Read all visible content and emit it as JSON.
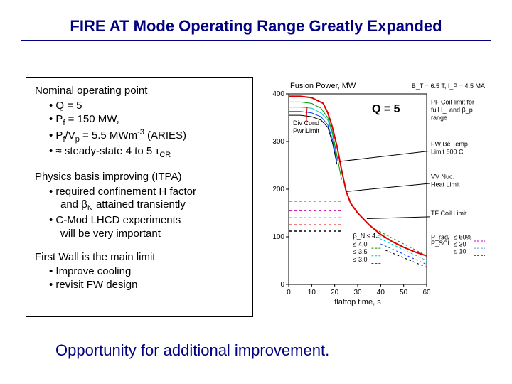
{
  "title": "FIRE AT Mode Operating Range Greatly Expanded",
  "nominal": {
    "heading": "Nominal operating point",
    "items": [
      "Q = 5",
      "P_f = 150 MW,",
      "P_f/V_p = 5.5 MWm^-3 (ARIES)",
      "≈ steady-state 4 to 5 τ_CR"
    ]
  },
  "physics": {
    "heading": "Physics basis improving (ITPA)",
    "items": [
      "required confinement H factor and β_N attained transiently",
      "C-Mod LHCD experiments will be very important"
    ]
  },
  "firstwall": {
    "heading": "First Wall is the main limit",
    "items": [
      "Improve cooling",
      "revisit FW design"
    ]
  },
  "bottom": "Opportunity for additional improvement.",
  "q5": "Q = 5",
  "chart": {
    "xlabel": "flattop time, s",
    "ylabel_top": "Fusion Power, MW",
    "top_right": "B_T = 6.5 T, I_P = 4.5 MA",
    "xlim": [
      0,
      60
    ],
    "ylim": [
      0,
      400
    ],
    "xticks": [
      0,
      10,
      20,
      30,
      40,
      50,
      60
    ],
    "yticks": [
      0,
      100,
      200,
      300,
      400
    ],
    "annotations": {
      "div_cond": "Div Cond\nPwr Limit",
      "pf_coil": "PF Coil limit for\nfull I_i and β_p\nrange",
      "fw_be": "FW Be Temp\nLimit 600 C",
      "vv_nuc": "VV Nuc.\nHeat Limit",
      "tf_coil": "TF Coil Limit",
      "beta_n": "β_N ≤ 4.5",
      "beta_40": "≤ 4.0",
      "beta_35": "≤ 3.5",
      "beta_30": "≤ 3.0",
      "prad": "P_rad/\nP_SCL",
      "p60": "≤ 60%",
      "p30": "≤ 30",
      "p10": "≤ 10"
    },
    "colors": {
      "red": "#dd0000",
      "green": "#009900",
      "cyan": "#00cccc",
      "blue": "#0044ff",
      "black": "#000000",
      "magenta": "#cc00aa",
      "lightblue": "#6699ff"
    },
    "red_curve": [
      [
        0,
        395
      ],
      [
        5,
        395
      ],
      [
        10,
        392
      ],
      [
        15,
        380
      ],
      [
        17,
        360
      ],
      [
        19,
        330
      ],
      [
        21,
        290
      ],
      [
        23,
        240
      ],
      [
        25,
        195
      ],
      [
        27,
        170
      ],
      [
        30,
        150
      ],
      [
        35,
        125
      ],
      [
        40,
        105
      ],
      [
        45,
        90
      ],
      [
        50,
        78
      ],
      [
        55,
        68
      ],
      [
        60,
        60
      ]
    ],
    "green_curve": [
      [
        0,
        383
      ],
      [
        5,
        383
      ],
      [
        10,
        380
      ],
      [
        14,
        370
      ],
      [
        17,
        350
      ],
      [
        19,
        320
      ],
      [
        21,
        270
      ],
      [
        23,
        220
      ]
    ],
    "cyan_curve": [
      [
        0,
        372
      ],
      [
        5,
        372
      ],
      [
        10,
        370
      ],
      [
        14,
        360
      ],
      [
        17,
        345
      ],
      [
        19,
        315
      ],
      [
        21,
        268
      ]
    ],
    "blue_curve": [
      [
        0,
        363
      ],
      [
        5,
        363
      ],
      [
        10,
        360
      ],
      [
        14,
        352
      ],
      [
        17,
        335
      ],
      [
        19,
        305
      ],
      [
        21,
        260
      ]
    ],
    "black_curve": [
      [
        0,
        355
      ],
      [
        5,
        355
      ],
      [
        10,
        352
      ],
      [
        14,
        345
      ],
      [
        17,
        330
      ],
      [
        19,
        298
      ],
      [
        21,
        252
      ]
    ],
    "dash_lines": {
      "blue": 175,
      "magenta": 155,
      "lightblue": 140,
      "red": 125,
      "black": 112
    }
  }
}
